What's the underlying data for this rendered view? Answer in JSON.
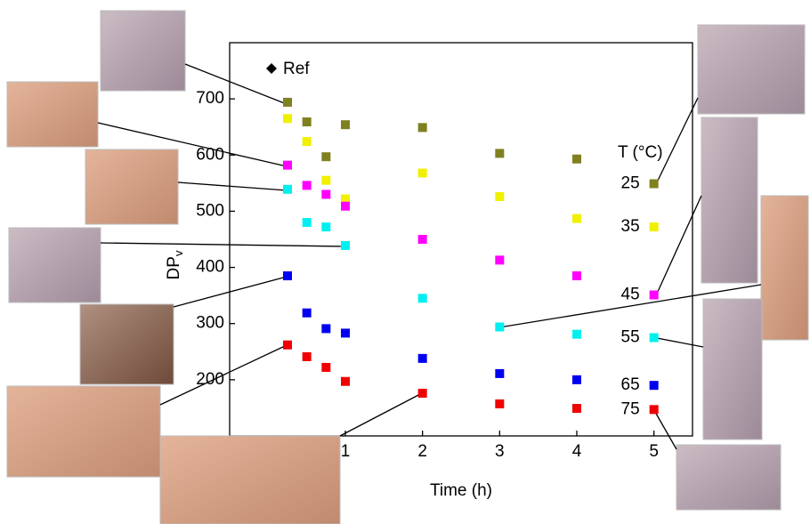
{
  "chart_data": {
    "type": "scatter",
    "xlabel": "Time (h)",
    "ylabel": "DP",
    "ylabel_sub": "v",
    "legend_title": "T (°C)",
    "ref_label": "Ref",
    "x": [
      0.25,
      0.5,
      0.75,
      1,
      2,
      3,
      4,
      5
    ],
    "xlim": [
      -0.5,
      5.5
    ],
    "xticks": [
      1,
      2,
      3,
      4,
      5
    ],
    "ylim": [
      100,
      800
    ],
    "yticks": [
      200,
      300,
      400,
      500,
      600,
      700
    ],
    "series": [
      {
        "name": "25",
        "color": "#808020",
        "values": [
          694,
          659,
          597,
          654,
          649,
          603,
          593,
          549
        ]
      },
      {
        "name": "35",
        "color": "#f0f000",
        "values": [
          665,
          624,
          555,
          522,
          568,
          526,
          487,
          472
        ]
      },
      {
        "name": "45",
        "color": "#ff00ff",
        "values": [
          582,
          546,
          530,
          509,
          450,
          413,
          385,
          351
        ]
      },
      {
        "name": "55",
        "color": "#00f0f0",
        "values": [
          539,
          480,
          472,
          439,
          345,
          294,
          281,
          275
        ]
      },
      {
        "name": "65",
        "color": "#0000f0",
        "values": [
          385,
          319,
          291,
          283,
          238,
          211,
          200,
          190
        ]
      },
      {
        "name": "75",
        "color": "#f00000",
        "values": [
          262,
          241,
          222,
          197,
          176,
          157,
          149,
          147
        ]
      }
    ]
  }
}
